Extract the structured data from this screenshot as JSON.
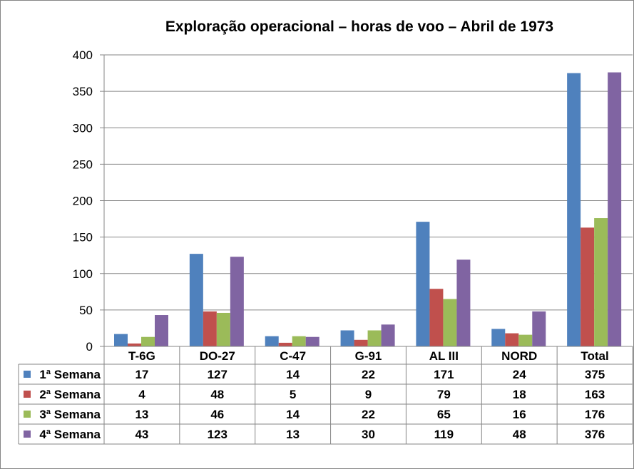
{
  "chart_data": {
    "type": "bar",
    "title": "Exploração operacional – horas de voo – Abril de 1973",
    "xlabel": "",
    "ylabel": "",
    "ylim": [
      0,
      400
    ],
    "yticks": [
      0,
      50,
      100,
      150,
      200,
      250,
      300,
      350,
      400
    ],
    "grid": true,
    "legend": "data-table",
    "categories": [
      "T-6G",
      "DO-27",
      "C-47",
      "G-91",
      "AL III",
      "NORD",
      "Total"
    ],
    "series": [
      {
        "name": "1ª Semana",
        "color": "#4F81BD",
        "values": [
          17,
          127,
          14,
          22,
          171,
          24,
          375
        ]
      },
      {
        "name": "2ª Semana",
        "color": "#C0504D",
        "values": [
          4,
          48,
          5,
          9,
          79,
          18,
          163
        ]
      },
      {
        "name": "3ª Semana",
        "color": "#9BBB59",
        "values": [
          13,
          46,
          14,
          22,
          65,
          16,
          176
        ]
      },
      {
        "name": "4ª Semana",
        "color": "#8064A2",
        "values": [
          43,
          123,
          13,
          30,
          119,
          48,
          376
        ]
      }
    ]
  }
}
